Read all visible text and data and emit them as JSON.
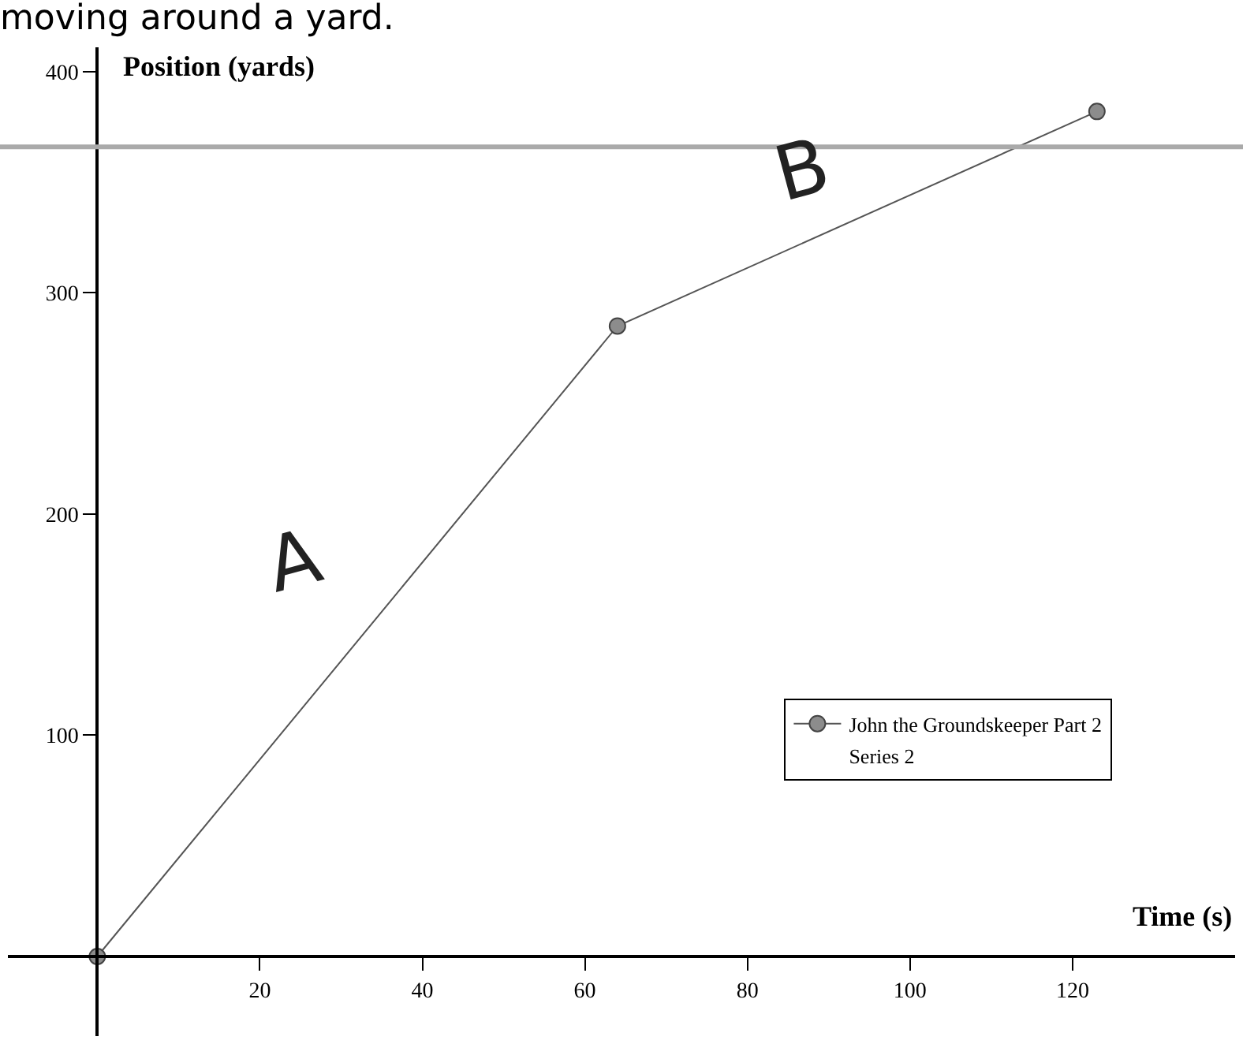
{
  "chart_data": {
    "type": "line",
    "title": "moving around a yard.",
    "xlabel": "Time (s)",
    "ylabel": "Position (yards)",
    "x": [
      0,
      64,
      123
    ],
    "series": [
      {
        "name": "John the Groundskeeper Part 2",
        "color": "#555555",
        "values": [
          0,
          285,
          382
        ]
      },
      {
        "name": "Series 2",
        "values": [
          null,
          null,
          null
        ],
        "marker": "none"
      }
    ],
    "xlim": [
      -11,
      140
    ],
    "ylim": [
      -36,
      411
    ],
    "xticks": [
      20,
      40,
      60,
      80,
      100,
      120
    ],
    "yticks": [
      100,
      200,
      300,
      400
    ],
    "annotations": [
      "A",
      "B"
    ],
    "ref_lines": [
      {
        "axis": "y",
        "value": 366,
        "color": "#aaaaaa"
      }
    ],
    "legend": "bottom right",
    "marker": "circle",
    "line_style": "solid"
  }
}
